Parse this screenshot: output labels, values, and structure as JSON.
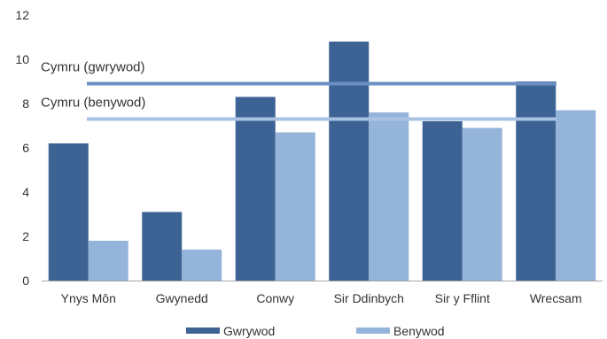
{
  "chart_data": {
    "type": "bar",
    "categories": [
      "Ynys Môn",
      "Gwynedd",
      "Conwy",
      "Sir Ddinbych",
      "Sir y Fflint",
      "Wrecsam"
    ],
    "series": [
      {
        "name": "Gwrywod",
        "color": "#3d6394",
        "values": [
          6.2,
          3.1,
          8.3,
          10.8,
          7.2,
          9.0
        ]
      },
      {
        "name": "Benywod",
        "color": "#95b4d9",
        "values": [
          1.8,
          1.4,
          6.7,
          7.6,
          6.9,
          7.7
        ]
      }
    ],
    "reference_lines": [
      {
        "label": "Cymru (gwrywod)",
        "value": 8.9,
        "color": "#6b8fc4"
      },
      {
        "label": "Cymru (benywod)",
        "value": 7.3,
        "color": "#a9c1e2"
      }
    ],
    "yticks": [
      "0",
      "2",
      "4",
      "6",
      "8",
      "10",
      "12"
    ],
    "ylim": [
      0,
      12
    ],
    "grid": false,
    "legend_position": "bottom"
  }
}
